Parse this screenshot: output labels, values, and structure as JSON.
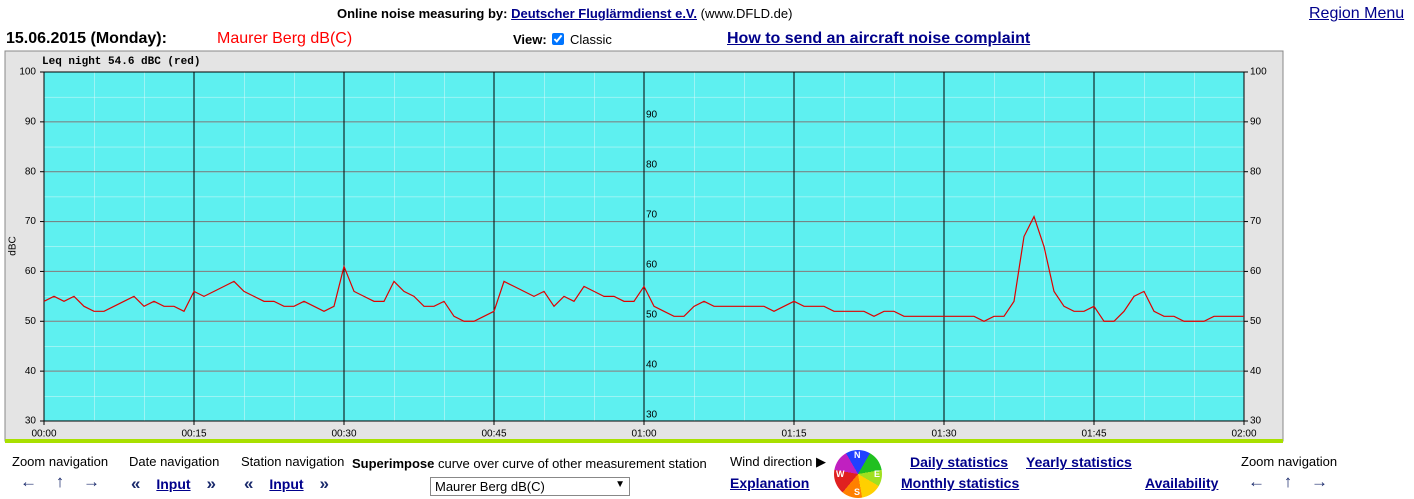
{
  "header": {
    "prefix": "Online noise measuring by:",
    "provider_link": "Deutscher Fluglärmdienst e.V.",
    "provider_url": "(www.DFLD.de)",
    "region_menu": "Region Menu"
  },
  "info_bar": {
    "date": "15.06.2015 (Monday):",
    "station": "Maurer Berg dB(C)",
    "view_label": "View:",
    "view_option": "Classic",
    "complaint_link": "How to send an aircraft noise complaint"
  },
  "chart_data": {
    "type": "line",
    "ylabel": "dBC",
    "x": [
      0,
      1,
      2,
      3,
      4,
      5,
      6,
      7,
      8,
      9,
      10,
      11,
      12,
      13,
      14,
      15,
      16,
      17,
      18,
      19,
      20,
      21,
      22,
      23,
      24,
      25,
      26,
      27,
      28,
      29,
      30,
      31,
      32,
      33,
      34,
      35,
      36,
      37,
      38,
      39,
      40,
      41,
      42,
      43,
      44,
      45,
      46,
      47,
      48,
      49,
      50,
      51,
      52,
      53,
      54,
      55,
      56,
      57,
      58,
      59,
      60,
      61,
      62,
      63,
      64,
      65,
      66,
      67,
      68,
      69,
      70,
      71,
      72,
      73,
      74,
      75,
      76,
      77,
      78,
      79,
      80,
      81,
      82,
      83,
      84,
      85,
      86,
      87,
      88,
      89,
      90,
      91,
      92,
      93,
      94,
      95,
      96,
      97,
      98,
      99,
      100,
      101,
      102,
      103,
      104,
      105,
      106,
      107,
      108,
      109,
      110,
      111,
      112,
      113,
      114,
      115,
      116,
      117,
      118,
      119,
      120
    ],
    "series": [
      {
        "name": "Leq night 54.6 dBC (red)",
        "color": "#e00000",
        "values": [
          54,
          55,
          54,
          55,
          53,
          52,
          52,
          53,
          54,
          55,
          53,
          54,
          53,
          53,
          52,
          56,
          55,
          56,
          57,
          58,
          56,
          55,
          54,
          54,
          53,
          53,
          54,
          53,
          52,
          53,
          61,
          56,
          55,
          54,
          54,
          58,
          56,
          55,
          53,
          53,
          54,
          51,
          50,
          50,
          51,
          52,
          58,
          57,
          56,
          55,
          56,
          53,
          55,
          54,
          57,
          56,
          55,
          55,
          54,
          54,
          57,
          53,
          52,
          51,
          51,
          53,
          54,
          53,
          53,
          53,
          53,
          53,
          53,
          52,
          53,
          54,
          53,
          53,
          53,
          52,
          52,
          52,
          52,
          51,
          52,
          52,
          51,
          51,
          51,
          51,
          51,
          51,
          51,
          51,
          50,
          51,
          51,
          54,
          67,
          71,
          65,
          56,
          53,
          52,
          52,
          53,
          50,
          50,
          52,
          55,
          56,
          52,
          51,
          51,
          50,
          50,
          50,
          51,
          51,
          51,
          51
        ]
      }
    ],
    "xlim": [
      0,
      120
    ],
    "xticks": [
      {
        "value": 0,
        "label": "00:00"
      },
      {
        "value": 15,
        "label": "00:15"
      },
      {
        "value": 30,
        "label": "00:30"
      },
      {
        "value": 45,
        "label": "00:45"
      },
      {
        "value": 60,
        "label": "01:00"
      },
      {
        "value": 75,
        "label": "01:15"
      },
      {
        "value": 90,
        "label": "01:30"
      },
      {
        "value": 105,
        "label": "01:45"
      },
      {
        "value": 120,
        "label": "02:00"
      }
    ],
    "ylim": [
      30,
      100
    ],
    "yticks": [
      30,
      40,
      50,
      60,
      70,
      80,
      90,
      100
    ],
    "y2lim": [
      28.8,
      98.6
    ],
    "y2ticks": [
      30,
      40,
      50,
      60,
      70,
      80,
      90
    ],
    "grid": true
  },
  "footer": {
    "zoom_label": "Zoom navigation",
    "zoom_arrows": [
      "←",
      "↑",
      "→"
    ],
    "date_label": "Date navigation",
    "station_label": "Station navigation",
    "prev_symbol": "«",
    "next_symbol": "»",
    "input_link": "Input",
    "superimpose_bold": "Superimpose",
    "superimpose_text": "curve over curve of other measurement station",
    "select_value": "Maurer Berg dB(C)",
    "select_arrow": "▼",
    "wind_label": "Wind direction ▶",
    "explanation": "Explanation",
    "compass": [
      "N",
      "E",
      "S",
      "W"
    ],
    "daily_stats": "Daily statistics",
    "monthly_stats": "Monthly statistics",
    "yearly_stats": "Yearly statistics",
    "availability": "Availability"
  }
}
